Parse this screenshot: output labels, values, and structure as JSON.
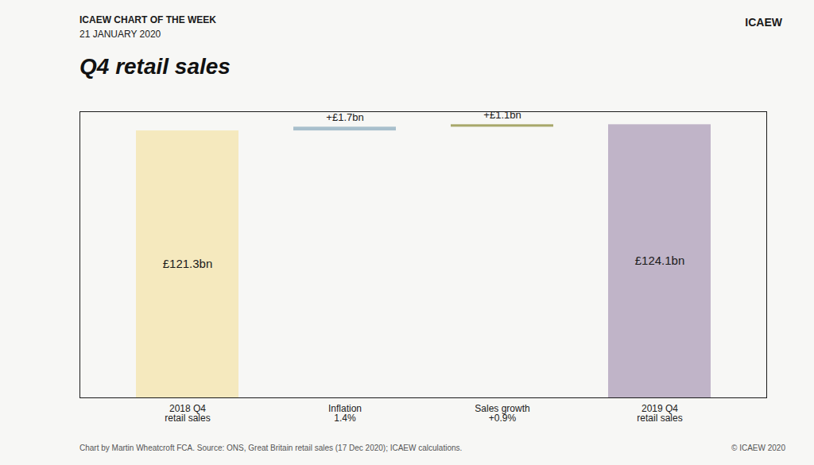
{
  "chart_data": {
    "type": "waterfall",
    "title": "Q4 retail sales",
    "annotations": [
      "ICAEW CHART OF THE WEEK",
      "21 JANUARY 2020",
      "ICAEW",
      "© ICAEW 2020"
    ],
    "caption": "Chart by Martin Wheatcroft FCA.  Source:  ONS, Great Britain retail sales (17 Dec 2020); ICAEW calculations.",
    "categories": [
      "2018 Q4\nretail sales",
      "Inflation\n1.4%",
      "Sales growth\n+0.9%",
      "2019 Q4\nretail sales"
    ],
    "values": [
      121.3,
      1.7,
      1.1,
      124.1
    ],
    "value_labels": [
      "£121.3bn",
      "+£1.7bn",
      "+£1.1bn",
      "£124.1bn"
    ],
    "data_labels": true,
    "colors": [
      "#f5e9be",
      "#a8bfcc",
      "#a8a86a",
      "#c0b4c8"
    ],
    "ylim": [
      0,
      130
    ],
    "yticks": [],
    "tick_labels": "x",
    "grid": false
  }
}
